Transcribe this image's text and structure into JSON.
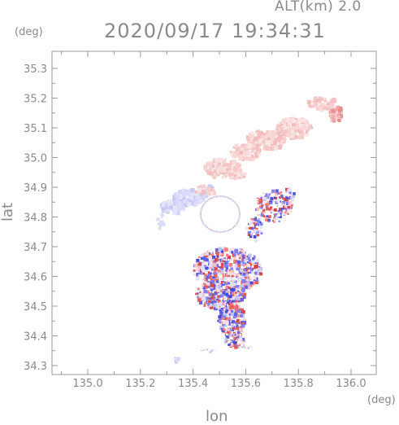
{
  "header": {
    "altitude_label": "ALT(km) 2.0",
    "timestamp": "2020/09/17 19:34:31"
  },
  "axes": {
    "x_unit": "(deg)",
    "y_unit": "(deg)",
    "x_label": "lon",
    "y_label": "lat",
    "x_ticks": [
      "135.0",
      "135.2",
      "135.4",
      "135.6",
      "135.8",
      "136.0"
    ],
    "y_ticks": [
      "35.3",
      "35.2",
      "35.1",
      "35.0",
      "34.9",
      "34.8",
      "34.7",
      "34.6",
      "34.5",
      "34.4",
      "34.3"
    ]
  },
  "colors": {
    "positive": "#f08080",
    "negative": "#8080f0",
    "frame": "#9a9a9a"
  }
}
